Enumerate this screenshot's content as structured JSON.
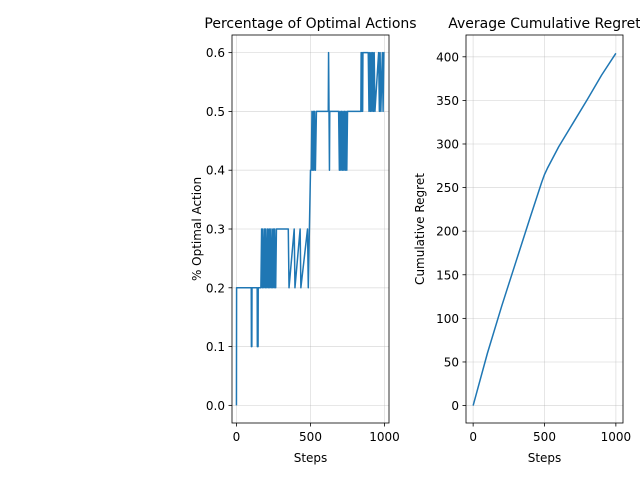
{
  "chart_data": [
    {
      "type": "line",
      "title": "Percentage of Optimal Actions",
      "xlabel": "Steps",
      "ylabel": "% Optimal Action",
      "xlim": [
        -30,
        1030
      ],
      "ylim": [
        -0.03,
        0.63
      ],
      "xticks": [
        0,
        500,
        1000
      ],
      "yticks": [
        0.0,
        0.1,
        0.2,
        0.3,
        0.4,
        0.5,
        0.6
      ],
      "grid": true,
      "color": "#1f77b4",
      "series": [
        {
          "x": [
            0,
            1,
            100,
            101,
            104,
            105,
            140,
            141,
            146,
            147,
            150,
            165,
            170,
            175,
            178,
            185,
            190,
            195,
            198,
            205,
            210,
            215,
            220,
            225,
            228,
            235,
            240,
            245,
            250,
            255,
            258,
            265,
            270,
            350,
            355,
            390,
            395,
            430,
            435,
            480,
            485,
            500,
            505,
            510,
            515,
            520,
            523,
            528,
            533,
            540,
            545,
            620,
            622,
            628,
            630,
            690,
            695,
            700,
            705,
            710,
            715,
            720,
            725,
            730,
            735,
            740,
            745,
            750,
            755,
            840,
            842,
            846,
            848,
            852,
            854,
            890,
            895,
            900,
            905,
            910,
            915,
            920,
            925,
            930,
            935,
            960,
            965,
            970,
            975,
            985,
            990,
            995,
            1000
          ],
          "y": [
            0.0,
            0.2,
            0.2,
            0.1,
            0.1,
            0.2,
            0.2,
            0.1,
            0.1,
            0.2,
            0.2,
            0.2,
            0.3,
            0.2,
            0.3,
            0.2,
            0.3,
            0.2,
            0.3,
            0.2,
            0.3,
            0.2,
            0.3,
            0.2,
            0.3,
            0.2,
            0.3,
            0.2,
            0.3,
            0.2,
            0.3,
            0.2,
            0.3,
            0.3,
            0.2,
            0.3,
            0.2,
            0.3,
            0.2,
            0.3,
            0.2,
            0.4,
            0.4,
            0.5,
            0.4,
            0.5,
            0.4,
            0.5,
            0.4,
            0.5,
            0.5,
            0.5,
            0.6,
            0.4,
            0.5,
            0.5,
            0.4,
            0.5,
            0.4,
            0.5,
            0.4,
            0.5,
            0.4,
            0.5,
            0.4,
            0.5,
            0.4,
            0.5,
            0.5,
            0.5,
            0.6,
            0.5,
            0.6,
            0.5,
            0.6,
            0.6,
            0.5,
            0.6,
            0.5,
            0.6,
            0.5,
            0.6,
            0.5,
            0.6,
            0.5,
            0.6,
            0.5,
            0.6,
            0.5,
            0.6,
            0.5,
            0.6,
            0.6
          ]
        }
      ]
    },
    {
      "type": "line",
      "title": "Average Cumulative Regret",
      "xlabel": "Steps",
      "ylabel": "Cumulative Regret",
      "xlim": [
        -50,
        1050
      ],
      "ylim": [
        -20,
        425
      ],
      "xticks": [
        0,
        500,
        1000
      ],
      "yticks": [
        0,
        50,
        100,
        150,
        200,
        250,
        300,
        350,
        400
      ],
      "grid": true,
      "color": "#1f77b4",
      "series": [
        {
          "x": [
            0,
            100,
            200,
            300,
            400,
            480,
            500,
            520,
            600,
            700,
            800,
            900,
            1000
          ],
          "y": [
            0,
            60,
            114,
            165,
            216,
            256,
            265,
            272,
            297,
            324,
            351,
            379,
            404
          ]
        }
      ]
    }
  ]
}
